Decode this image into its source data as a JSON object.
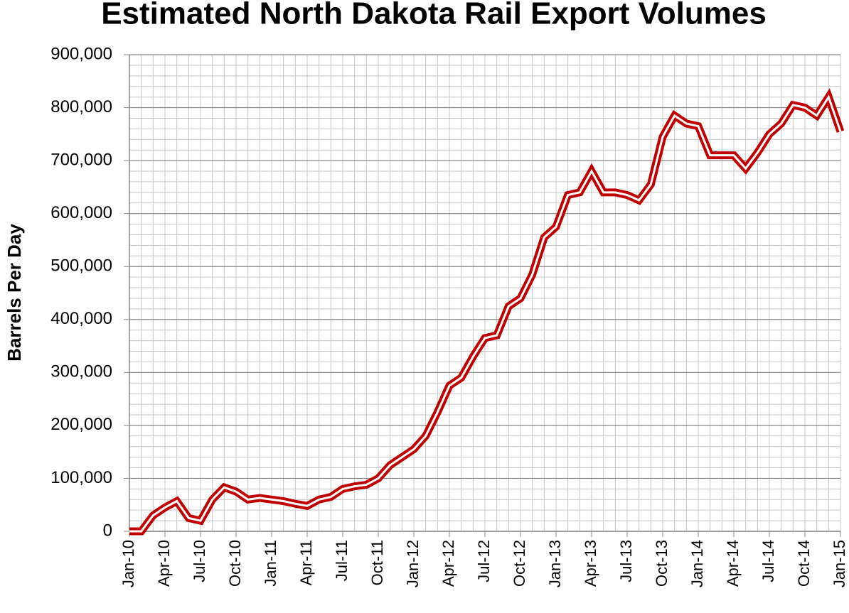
{
  "chart_data": {
    "type": "line",
    "title": "Estimated North Dakota Rail Export Volumes",
    "y_label": "Barrels Per Day",
    "categories": [
      "Jan-10",
      null,
      null,
      "Apr-10",
      null,
      null,
      "Jul-10",
      null,
      null,
      "Oct-10",
      null,
      null,
      "Jan-11",
      null,
      null,
      "Apr-11",
      null,
      null,
      "Jul-11",
      null,
      null,
      "Oct-11",
      null,
      null,
      "Jan-12",
      null,
      null,
      "Apr-12",
      null,
      null,
      "Jul-12",
      null,
      null,
      "Oct-12",
      null,
      null,
      "Jan-13",
      null,
      null,
      "Apr-13",
      null,
      null,
      "Jul-13",
      null,
      null,
      "Oct-13",
      null,
      null,
      "Jan-14",
      null,
      null,
      "Apr-14",
      null,
      null,
      "Jul-14",
      null,
      null,
      "Oct-14",
      null,
      null,
      "Jan-15"
    ],
    "series": [
      {
        "color": "#c00000",
        "values": [
          0,
          0,
          30000,
          45000,
          57000,
          25000,
          20000,
          60000,
          83000,
          75000,
          60000,
          63000,
          60000,
          57000,
          52000,
          48000,
          60000,
          65000,
          80000,
          85000,
          88000,
          100000,
          125000,
          140000,
          155000,
          180000,
          225000,
          275000,
          290000,
          330000,
          365000,
          370000,
          425000,
          440000,
          485000,
          555000,
          575000,
          635000,
          640000,
          680000,
          640000,
          640000,
          635000,
          625000,
          655000,
          745000,
          785000,
          770000,
          765000,
          710000,
          710000,
          710000,
          685000,
          715000,
          750000,
          770000,
          805000,
          800000,
          785000,
          820000,
          755000
        ]
      }
    ],
    "ylim": [
      0,
      900000
    ],
    "yticks": [
      {
        "value": 0,
        "label": "0"
      },
      {
        "value": 100000,
        "label": "100,000"
      },
      {
        "value": 200000,
        "label": "200,000"
      },
      {
        "value": 300000,
        "label": "300,000"
      },
      {
        "value": 400000,
        "label": "400,000"
      },
      {
        "value": 500000,
        "label": "500,000"
      },
      {
        "value": 600000,
        "label": "600,000"
      },
      {
        "value": 700000,
        "label": "700,000"
      },
      {
        "value": 800000,
        "label": "800,000"
      },
      {
        "value": 900000,
        "label": "900,000"
      }
    ],
    "minor_yticks": [
      20000,
      40000,
      60000,
      80000,
      120000,
      140000,
      160000,
      180000,
      220000,
      240000,
      260000,
      280000,
      320000,
      340000,
      360000,
      380000,
      420000,
      440000,
      460000,
      480000,
      520000,
      540000,
      560000,
      580000,
      620000,
      640000,
      660000,
      680000,
      720000,
      740000,
      760000,
      780000,
      820000,
      840000,
      860000,
      880000
    ],
    "grid": true
  }
}
